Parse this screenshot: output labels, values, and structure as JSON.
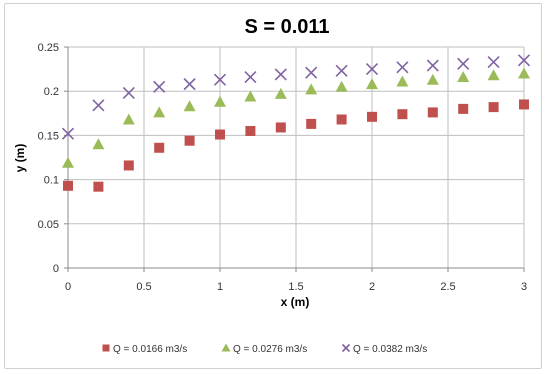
{
  "chart_data": {
    "type": "scatter",
    "title": "S = 0.011",
    "xlabel": "x (m)",
    "ylabel": "y (m)",
    "xlim": [
      0,
      3
    ],
    "ylim": [
      0,
      0.25
    ],
    "x_ticks": [
      0,
      0.5,
      1,
      1.5,
      2,
      2.5,
      3
    ],
    "y_ticks": [
      0,
      0.05,
      0.1,
      0.15,
      0.2,
      0.25
    ],
    "x_tick_labels": [
      "0",
      "0.5",
      "1",
      "1.5",
      "2",
      "2.5",
      "3"
    ],
    "y_tick_labels": [
      "0",
      "0.05",
      "0.1",
      "0.15",
      "0.2",
      "0.25"
    ],
    "grid": true,
    "legend_position": "bottom",
    "x": [
      0,
      0.2,
      0.4,
      0.6,
      0.8,
      1.0,
      1.2,
      1.4,
      1.6,
      1.8,
      2.0,
      2.2,
      2.4,
      2.6,
      2.8,
      3.0
    ],
    "series": [
      {
        "name": "Q = 0.0166 m3/s",
        "marker": "square",
        "color": "#c0504d",
        "values": [
          0.093,
          0.092,
          0.116,
          0.136,
          0.144,
          0.151,
          0.155,
          0.159,
          0.163,
          0.168,
          0.171,
          0.174,
          0.176,
          0.18,
          0.182,
          0.185
        ]
      },
      {
        "name": "Q = 0.0276 m3/s",
        "marker": "triangle",
        "color": "#9bbb59",
        "values": [
          0.119,
          0.14,
          0.168,
          0.176,
          0.183,
          0.188,
          0.194,
          0.197,
          0.202,
          0.205,
          0.208,
          0.211,
          0.213,
          0.216,
          0.218,
          0.22
        ]
      },
      {
        "name": "Q = 0.0382 m3/s",
        "marker": "x",
        "color": "#8064a2",
        "values": [
          0.152,
          0.184,
          0.198,
          0.205,
          0.208,
          0.213,
          0.216,
          0.219,
          0.221,
          0.223,
          0.225,
          0.227,
          0.229,
          0.231,
          0.233,
          0.235
        ]
      }
    ]
  }
}
